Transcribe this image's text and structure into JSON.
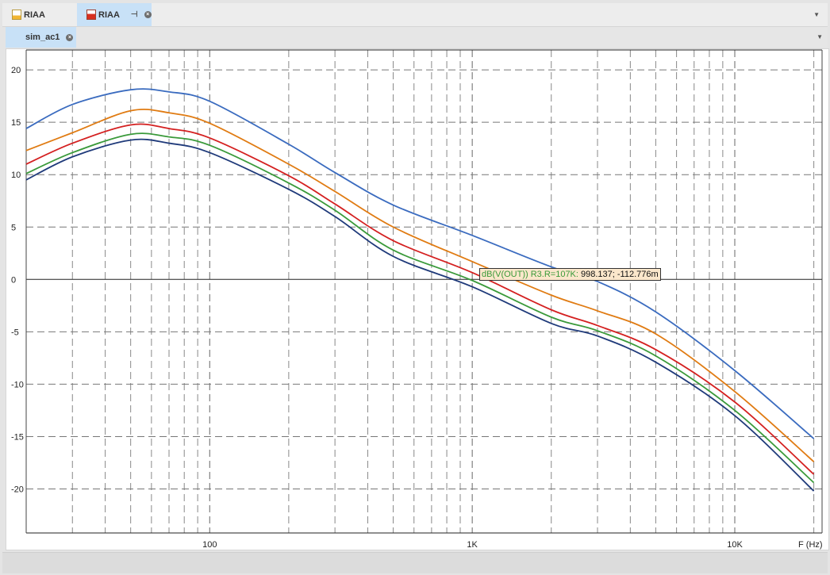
{
  "tabs": [
    {
      "label": "RIAA",
      "icon": "schematic-icon",
      "active": false
    },
    {
      "label": "RIAA",
      "icon": "schematic-sim-icon",
      "active": true,
      "pin": "⊣",
      "close": "×"
    }
  ],
  "subtabs": [
    {
      "label": "sim_ac1",
      "close": "×"
    }
  ],
  "tooltip": {
    "series": "dB(V(OUT)) R3.R=107K:",
    "value": "998.137; -112.776m"
  },
  "chart_data": {
    "type": "line",
    "xscale": "log",
    "xlabel": "F (Hz)",
    "ylabel": "",
    "xlim": [
      20,
      21500
    ],
    "ylim": [
      -24.2,
      21.9
    ],
    "grid": true,
    "x_ticks": [
      {
        "v": 100,
        "label": "100"
      },
      {
        "v": 1000,
        "label": "1K"
      },
      {
        "v": 10000,
        "label": "10K"
      }
    ],
    "y_ticks": [
      20,
      15,
      10,
      5,
      0,
      -5,
      -10,
      -15,
      -20
    ],
    "x": [
      20,
      30,
      50,
      70,
      100,
      200,
      300,
      500,
      1000,
      2000,
      3000,
      5000,
      10000,
      20000
    ],
    "series": [
      {
        "color": "#3a6bbf",
        "values": [
          14.4,
          16.7,
          18.1,
          17.9,
          17.0,
          12.9,
          10.2,
          7.1,
          4.2,
          1.2,
          -0.2,
          -3.1,
          -8.7,
          -15.2
        ]
      },
      {
        "color": "#e07b12",
        "values": [
          12.3,
          14.0,
          16.1,
          15.9,
          14.9,
          11.0,
          8.4,
          5.0,
          1.7,
          -1.5,
          -3.0,
          -5.2,
          -10.7,
          -17.4
        ]
      },
      {
        "color": "#d42020",
        "values": [
          11.0,
          13.0,
          14.75,
          14.4,
          13.5,
          9.9,
          7.2,
          3.7,
          0.65,
          -2.9,
          -4.4,
          -6.7,
          -11.7,
          -18.6
        ]
      },
      {
        "color": "#3a9a3a",
        "values": [
          10.1,
          12.1,
          13.85,
          13.6,
          12.8,
          9.2,
          6.6,
          2.8,
          -0.1,
          -3.6,
          -4.9,
          -7.3,
          -12.5,
          -19.4
        ]
      },
      {
        "color": "#1f3a7a",
        "values": [
          9.5,
          11.7,
          13.3,
          13.0,
          12.1,
          8.6,
          6.0,
          2.2,
          -0.7,
          -4.2,
          -5.4,
          -7.9,
          -13.0,
          -20.2
        ]
      }
    ]
  }
}
